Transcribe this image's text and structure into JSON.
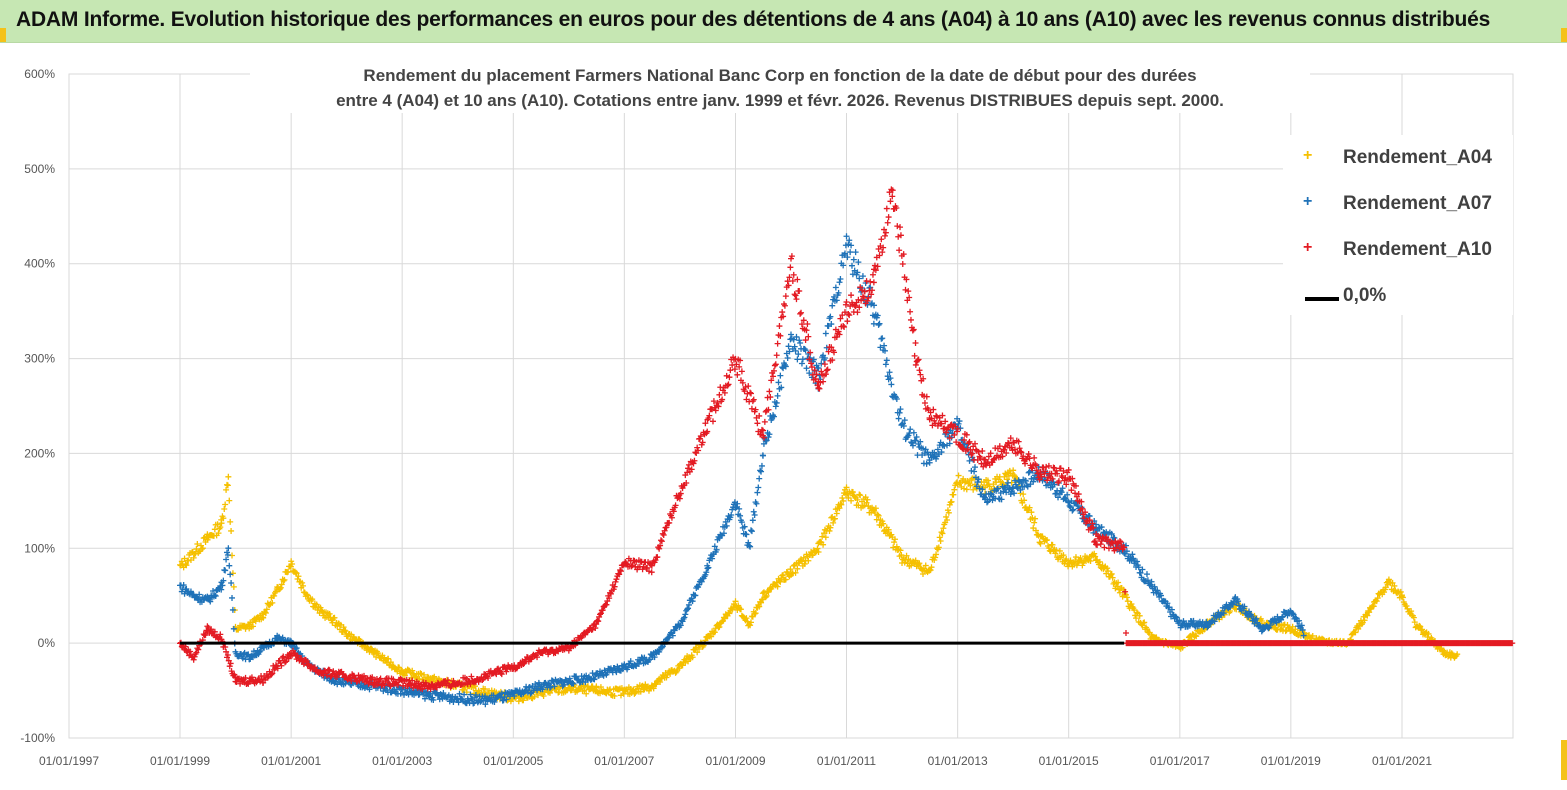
{
  "header": {
    "title": "ADAM Informe. Evolution historique des performances en euros pour des détentions de 4 ans (A04) à 10 ans (A10) avec les revenus connus distribués"
  },
  "colors": {
    "header_bg": "#c6e7b3",
    "A04": "#f5c000",
    "A07": "#1f72b8",
    "A10": "#e31b23",
    "zero_line": "#000000"
  },
  "chart_data": {
    "type": "scatter",
    "title_line1": "Rendement du placement Farmers National Banc Corp en fonction de la date de début pour des durées",
    "title_line2": "entre 4 (A04) et 10 ans (A10). Cotations entre janv. 1999 et févr. 2026. Revenus DISTRIBUES depuis sept. 2000.",
    "xlabel": "",
    "ylabel": "",
    "x_ticks": [
      "01/01/1997",
      "01/01/1999",
      "01/01/2001",
      "01/01/2003",
      "01/01/2005",
      "01/01/2007",
      "01/01/2009",
      "01/01/2011",
      "01/01/2013",
      "01/01/2015",
      "01/01/2017",
      "01/01/2019",
      "01/01/2021"
    ],
    "y_ticks": [
      "600%",
      "500%",
      "400%",
      "300%",
      "200%",
      "100%",
      "0%",
      "-100%"
    ],
    "xlim": [
      "1997-01-01",
      "2023-01-01"
    ],
    "ylim": [
      -100,
      600
    ],
    "grid": true,
    "legend_position": "top-right",
    "series": [
      {
        "name": "Rendement_A04",
        "marker": "+",
        "points": [
          [
            "1999-01-01",
            80
          ],
          [
            "1999-04-01",
            95
          ],
          [
            "1999-07-01",
            110
          ],
          [
            "1999-10-01",
            125
          ],
          [
            "1999-11-15",
            175
          ],
          [
            "2000-01-01",
            15
          ],
          [
            "2000-04-01",
            18
          ],
          [
            "2000-07-01",
            30
          ],
          [
            "2000-10-01",
            55
          ],
          [
            "2001-01-01",
            85
          ],
          [
            "2001-04-01",
            55
          ],
          [
            "2001-07-01",
            35
          ],
          [
            "2001-10-01",
            25
          ],
          [
            "2002-01-01",
            10
          ],
          [
            "2002-04-01",
            0
          ],
          [
            "2002-07-01",
            -10
          ],
          [
            "2002-10-01",
            -20
          ],
          [
            "2003-01-01",
            -30
          ],
          [
            "2003-07-01",
            -38
          ],
          [
            "2004-01-01",
            -45
          ],
          [
            "2004-07-01",
            -52
          ],
          [
            "2005-01-01",
            -58
          ],
          [
            "2005-07-01",
            -52
          ],
          [
            "2006-01-01",
            -48
          ],
          [
            "2006-07-01",
            -50
          ],
          [
            "2007-01-01",
            -52
          ],
          [
            "2007-07-01",
            -45
          ],
          [
            "2008-01-01",
            -25
          ],
          [
            "2008-07-01",
            5
          ],
          [
            "2009-01-01",
            40
          ],
          [
            "2009-04-01",
            20
          ],
          [
            "2009-07-01",
            50
          ],
          [
            "2010-01-01",
            75
          ],
          [
            "2010-07-01",
            100
          ],
          [
            "2011-01-01",
            160
          ],
          [
            "2011-07-01",
            140
          ],
          [
            "2012-01-01",
            90
          ],
          [
            "2012-07-01",
            75
          ],
          [
            "2013-01-01",
            170
          ],
          [
            "2013-07-01",
            165
          ],
          [
            "2014-01-01",
            175
          ],
          [
            "2014-07-01",
            110
          ],
          [
            "2015-01-01",
            85
          ],
          [
            "2015-07-01",
            90
          ],
          [
            "2016-01-01",
            50
          ],
          [
            "2016-07-01",
            5
          ],
          [
            "2017-01-01",
            -5
          ],
          [
            "2017-07-01",
            20
          ],
          [
            "2018-01-01",
            40
          ],
          [
            "2018-07-01",
            20
          ],
          [
            "2019-01-01",
            15
          ],
          [
            "2019-07-01",
            2
          ],
          [
            "2020-01-01",
            0
          ],
          [
            "2020-07-01",
            40
          ],
          [
            "2020-10-01",
            65
          ],
          [
            "2021-01-01",
            50
          ],
          [
            "2021-04-01",
            20
          ],
          [
            "2021-07-01",
            5
          ],
          [
            "2021-10-01",
            -10
          ],
          [
            "2022-01-01",
            -15
          ]
        ]
      },
      {
        "name": "Rendement_A07",
        "marker": "+",
        "points": [
          [
            "1999-01-01",
            60
          ],
          [
            "1999-04-01",
            50
          ],
          [
            "1999-07-01",
            45
          ],
          [
            "1999-10-01",
            60
          ],
          [
            "1999-11-15",
            100
          ],
          [
            "2000-01-01",
            -10
          ],
          [
            "2000-04-01",
            -15
          ],
          [
            "2000-07-01",
            -5
          ],
          [
            "2000-10-01",
            5
          ],
          [
            "2001-01-01",
            0
          ],
          [
            "2001-04-01",
            -20
          ],
          [
            "2001-07-01",
            -30
          ],
          [
            "2001-10-01",
            -38
          ],
          [
            "2002-01-01",
            -42
          ],
          [
            "2002-07-01",
            -45
          ],
          [
            "2003-01-01",
            -50
          ],
          [
            "2003-07-01",
            -55
          ],
          [
            "2004-01-01",
            -58
          ],
          [
            "2004-07-01",
            -60
          ],
          [
            "2005-01-01",
            -55
          ],
          [
            "2005-07-01",
            -45
          ],
          [
            "2006-01-01",
            -40
          ],
          [
            "2006-07-01",
            -35
          ],
          [
            "2007-01-01",
            -25
          ],
          [
            "2007-07-01",
            -15
          ],
          [
            "2008-01-01",
            20
          ],
          [
            "2008-07-01",
            80
          ],
          [
            "2009-01-01",
            150
          ],
          [
            "2009-04-01",
            100
          ],
          [
            "2009-07-01",
            200
          ],
          [
            "2010-01-01",
            320
          ],
          [
            "2010-07-01",
            280
          ],
          [
            "2011-01-01",
            420
          ],
          [
            "2011-07-01",
            350
          ],
          [
            "2012-01-01",
            230
          ],
          [
            "2012-07-01",
            190
          ],
          [
            "2013-01-01",
            230
          ],
          [
            "2013-07-01",
            150
          ],
          [
            "2014-01-01",
            165
          ],
          [
            "2014-07-01",
            180
          ],
          [
            "2015-01-01",
            150
          ],
          [
            "2015-07-01",
            120
          ],
          [
            "2016-01-01",
            100
          ],
          [
            "2016-07-01",
            60
          ],
          [
            "2017-01-01",
            20
          ],
          [
            "2017-07-01",
            20
          ],
          [
            "2018-01-01",
            45
          ],
          [
            "2018-07-01",
            15
          ],
          [
            "2019-01-01",
            35
          ],
          [
            "2019-04-01",
            10
          ]
        ]
      },
      {
        "name": "Rendement_A10",
        "marker": "+",
        "points": [
          [
            "1999-01-01",
            0
          ],
          [
            "1999-04-01",
            -15
          ],
          [
            "1999-07-01",
            15
          ],
          [
            "1999-10-01",
            5
          ],
          [
            "2000-01-01",
            -40
          ],
          [
            "2000-07-01",
            -38
          ],
          [
            "2001-01-01",
            -10
          ],
          [
            "2001-07-01",
            -30
          ],
          [
            "2002-01-01",
            -35
          ],
          [
            "2002-07-01",
            -40
          ],
          [
            "2003-01-01",
            -42
          ],
          [
            "2003-07-01",
            -45
          ],
          [
            "2004-01-01",
            -42
          ],
          [
            "2004-07-01",
            -35
          ],
          [
            "2005-01-01",
            -25
          ],
          [
            "2005-07-01",
            -10
          ],
          [
            "2006-01-01",
            -5
          ],
          [
            "2006-07-01",
            20
          ],
          [
            "2007-01-01",
            85
          ],
          [
            "2007-07-01",
            80
          ],
          [
            "2008-01-01",
            160
          ],
          [
            "2008-07-01",
            230
          ],
          [
            "2009-01-01",
            300
          ],
          [
            "2009-07-01",
            220
          ],
          [
            "2010-01-01",
            400
          ],
          [
            "2010-07-01",
            270
          ],
          [
            "2011-01-01",
            350
          ],
          [
            "2011-07-01",
            380
          ],
          [
            "2011-11-01",
            480
          ],
          [
            "2012-04-01",
            300
          ],
          [
            "2012-07-01",
            240
          ],
          [
            "2013-01-01",
            220
          ],
          [
            "2013-07-01",
            190
          ],
          [
            "2014-01-01",
            210
          ],
          [
            "2014-07-01",
            180
          ],
          [
            "2015-01-01",
            175
          ],
          [
            "2015-07-01",
            110
          ],
          [
            "2016-01-01",
            100
          ],
          [
            "2016-01-15",
            0
          ],
          [
            "2022-12-31",
            0
          ]
        ]
      }
    ],
    "zero_line": {
      "name": "0,0%",
      "from": "1999-01-01",
      "to": "2016-01-01",
      "value": 0
    }
  },
  "legend": {
    "items": [
      {
        "label": "Rendement_A04",
        "marker": "+"
      },
      {
        "label": "Rendement_A07",
        "marker": "+"
      },
      {
        "label": "Rendement_A10",
        "marker": "+"
      },
      {
        "label": "0,0%",
        "marker": "line"
      }
    ]
  }
}
